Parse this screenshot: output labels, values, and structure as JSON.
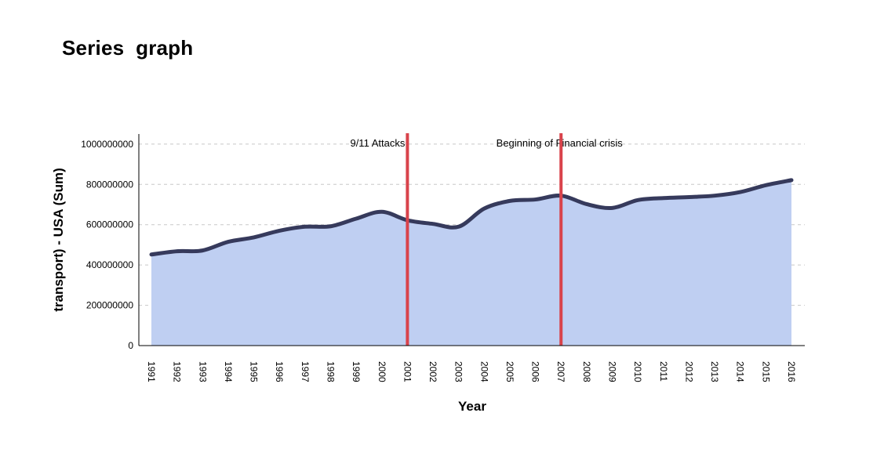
{
  "title": "Series  graph",
  "chart_data": {
    "type": "area",
    "xlabel": "Year",
    "ylabel": "transport) - USA (Sum)",
    "ylim": [
      0,
      1050000000
    ],
    "yticks": [
      0,
      200000000,
      400000000,
      600000000,
      800000000,
      1000000000
    ],
    "ytick_labels": [
      "0",
      "200000000",
      "400000000",
      "600000000",
      "800000000",
      "1000000000"
    ],
    "grid": true,
    "x": [
      "1991",
      "1992",
      "1993",
      "1994",
      "1995",
      "1996",
      "1997",
      "1998",
      "1999",
      "2000",
      "2001",
      "2002",
      "2003",
      "2004",
      "2005",
      "2006",
      "2007",
      "2008",
      "2009",
      "2010",
      "2011",
      "2012",
      "2013",
      "2014",
      "2015",
      "2016"
    ],
    "series": [
      {
        "values": [
          452000000,
          468000000,
          472000000,
          515000000,
          537000000,
          570000000,
          590000000,
          592000000,
          630000000,
          664000000,
          622000000,
          604000000,
          590000000,
          680000000,
          718000000,
          725000000,
          744000000,
          702000000,
          683000000,
          722000000,
          732000000,
          737000000,
          744000000,
          762000000,
          796000000,
          821000000
        ],
        "line_color": "#363a5c",
        "fill_color": "#bfcff2"
      }
    ],
    "annotations": [
      {
        "x": "2001",
        "label": "9/11 Attacks",
        "color": "#d9434b"
      },
      {
        "x": "2007",
        "label": "Beginning of Financial crisis",
        "color": "#d9434b"
      }
    ]
  }
}
